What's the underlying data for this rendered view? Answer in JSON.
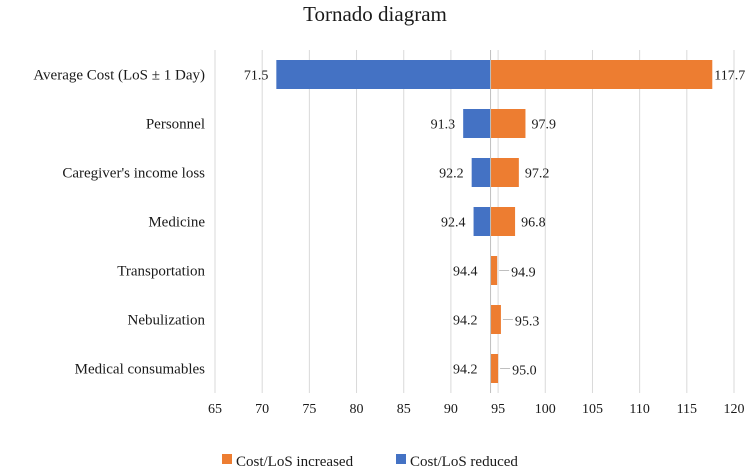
{
  "chart_data": {
    "type": "bar",
    "orientation": "horizontal",
    "subtype": "tornado",
    "title": "Tornado diagram",
    "base_value": 94.2,
    "xlim": [
      65,
      120
    ],
    "xticks": [
      65,
      70,
      75,
      80,
      85,
      90,
      95,
      100,
      105,
      110,
      115,
      120
    ],
    "grid": true,
    "legend_position": "bottom",
    "categories": [
      "Average Cost (LoS ± 1 Day)",
      "Personnel",
      "Caregiver's income loss",
      "Medicine",
      "Transportation",
      "Nebulization",
      "Medical consumables"
    ],
    "series": [
      {
        "name": "Cost/LoS increased",
        "color": "#ED7D31",
        "values": [
          117.7,
          97.9,
          97.2,
          96.8,
          94.9,
          95.3,
          95.0
        ],
        "labels": [
          "117.7",
          "97.9",
          "97.2",
          "96.8",
          "94.9",
          "95.3",
          "95.0"
        ]
      },
      {
        "name": "Cost/LoS reduced",
        "color": "#4472C4",
        "values": [
          71.5,
          91.3,
          92.2,
          92.4,
          94.4,
          94.2,
          94.2
        ],
        "labels": [
          "71.5",
          "91.3",
          "92.2",
          "92.4",
          "94.4",
          "94.2",
          "94.2"
        ]
      }
    ]
  }
}
